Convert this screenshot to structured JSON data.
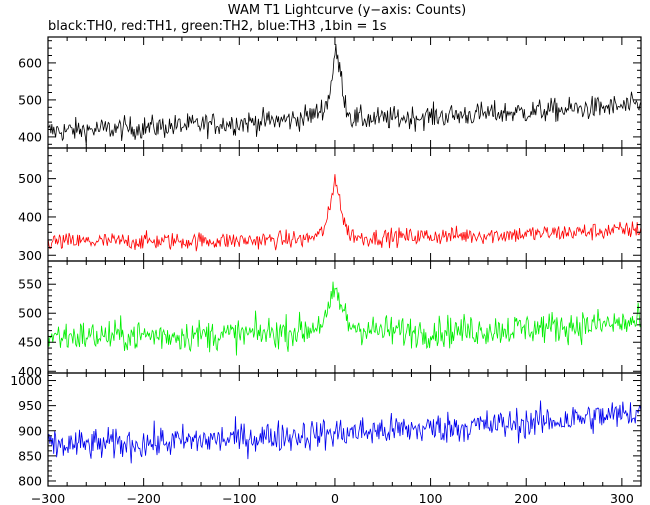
{
  "chart_data": {
    "type": "line",
    "title": "WAM T1 Lightcurve (y−axis: Counts)",
    "subtitle": "black:TH0, red:TH1, green:TH2, blue:TH3 ,1bin = 1s",
    "xlabel": "",
    "xlim": [
      -300,
      320
    ],
    "x_ticks": [
      -300,
      -200,
      -100,
      0,
      100,
      200,
      300
    ],
    "x_tick_labels": [
      "−300",
      "−200",
      "−100",
      "0",
      "100",
      "200",
      "300"
    ],
    "grid": false,
    "panels": [
      {
        "name": "TH0",
        "color": "#000000",
        "ylabel": "",
        "ylim": [
          370,
          670
        ],
        "y_ticks": [
          400,
          500,
          600
        ],
        "y_tick_labels": [
          "400",
          "500",
          "600"
        ],
        "profile": {
          "times": [
            -300,
            -200,
            -100,
            -40,
            -20,
            -8,
            -3,
            0,
            3,
            6,
            9,
            12,
            18,
            40,
            100,
            200,
            300,
            320
          ],
          "mean": [
            415,
            425,
            438,
            448,
            462,
            490,
            560,
            625,
            610,
            570,
            520,
            480,
            450,
            448,
            455,
            468,
            482,
            485
          ]
        },
        "noise_amplitude": 30
      },
      {
        "name": "TH1",
        "color": "#ff0000",
        "ylabel": "",
        "ylim": [
          285,
          580
        ],
        "y_ticks": [
          300,
          400,
          500
        ],
        "y_tick_labels": [
          "300",
          "400",
          "500"
        ],
        "profile": {
          "times": [
            -300,
            -100,
            -30,
            -15,
            -8,
            -3,
            0,
            3,
            6,
            9,
            14,
            25,
            100,
            200,
            300,
            320
          ],
          "mean": [
            335,
            338,
            342,
            355,
            390,
            450,
            505,
            480,
            430,
            390,
            360,
            345,
            350,
            355,
            365,
            368
          ]
        },
        "noise_amplitude": 22
      },
      {
        "name": "TH2",
        "color": "#00ee00",
        "ylabel": "",
        "ylim": [
          397,
          590
        ],
        "y_ticks": [
          400,
          450,
          500,
          550
        ],
        "y_tick_labels": [
          "400",
          "450",
          "500",
          "550"
        ],
        "profile": {
          "times": [
            -300,
            -100,
            -30,
            -10,
            -3,
            0,
            3,
            8,
            15,
            40,
            100,
            200,
            300,
            320
          ],
          "mean": [
            460,
            463,
            470,
            488,
            520,
            540,
            530,
            505,
            480,
            470,
            468,
            474,
            482,
            485
          ]
        },
        "noise_amplitude": 26
      },
      {
        "name": "TH3",
        "color": "#0000ee",
        "ylabel": "",
        "ylim": [
          790,
          1015
        ],
        "y_ticks": [
          800,
          850,
          900,
          950,
          1000
        ],
        "y_tick_labels": [
          "800",
          "850",
          "900",
          "950",
          "1000"
        ],
        "profile": {
          "times": [
            -300,
            -200,
            -100,
            0,
            100,
            200,
            300,
            320
          ],
          "mean": [
            870,
            875,
            885,
            895,
            905,
            915,
            932,
            940
          ]
        },
        "noise_amplitude": 30
      }
    ]
  }
}
